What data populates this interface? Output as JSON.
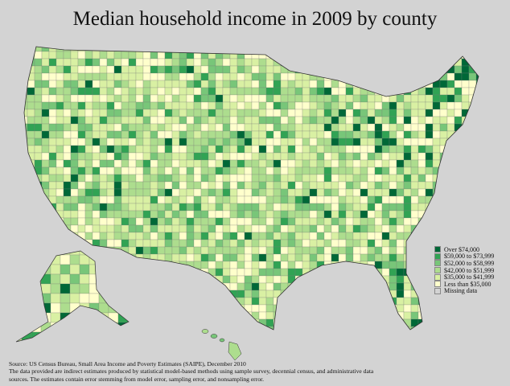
{
  "title": "Median household income in 2009 by county",
  "legend": [
    {
      "label": "Over $74,000",
      "color": "#006837"
    },
    {
      "label": "$59,000 to $73,999",
      "color": "#31a354"
    },
    {
      "label": "$52,000 to $58,999",
      "color": "#78c679"
    },
    {
      "label": "$42,000 to $51,999",
      "color": "#addd8e"
    },
    {
      "label": "$35,000 to $41,999",
      "color": "#d9f0a3"
    },
    {
      "label": "Less than $35,000",
      "color": "#ffffcc"
    },
    {
      "label": "Missing data",
      "color": "#d3d3d3"
    }
  ],
  "source": {
    "line1": "Source: US Census Bureau, Small Area Income and Poverty Estimates (SAIPE), December 2010",
    "line2": "The data provided are indirect estimates produced by statistical model-based methods using sample survey, decennial census, and administrative data sources. The estimates contain error stemming from model error, sampling error, and nonsampling error."
  },
  "background_color": "#d3d3d3"
}
